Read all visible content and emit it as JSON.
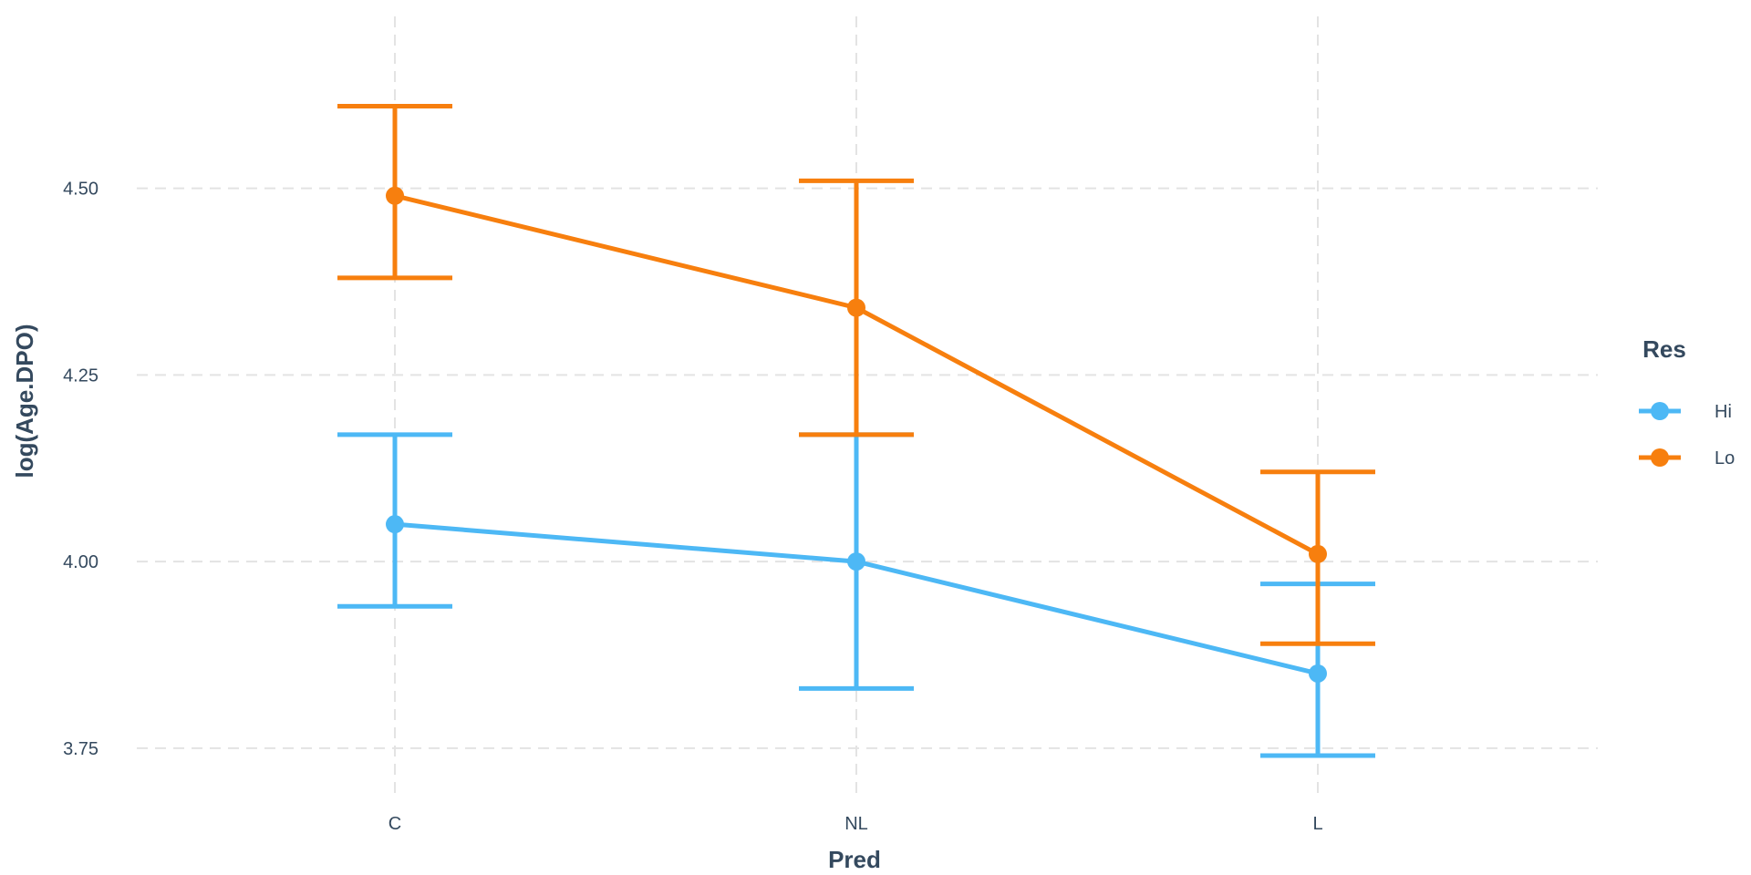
{
  "chart_data": {
    "type": "line",
    "categories": [
      "C",
      "NL",
      "L"
    ],
    "xlabel": "Pred",
    "ylabel": "log(Age.DPO)",
    "ylim": [
      3.69,
      4.74
    ],
    "yticks": [
      3.75,
      4.0,
      4.25,
      4.5
    ],
    "ytick_labels": [
      "3.75",
      "4.00",
      "4.25",
      "4.50"
    ],
    "grid": true,
    "legend": {
      "title": "Res",
      "position": "right"
    },
    "series": [
      {
        "name": "Hi",
        "color": "#4db8f5",
        "values": [
          4.05,
          4.0,
          3.85
        ],
        "lower": [
          3.94,
          3.83,
          3.74
        ],
        "upper": [
          4.17,
          4.17,
          3.97
        ]
      },
      {
        "name": "Lo",
        "color": "#f77f0e",
        "values": [
          4.49,
          4.34,
          4.01
        ],
        "lower": [
          4.38,
          4.17,
          3.89
        ],
        "upper": [
          4.61,
          4.51,
          4.12
        ]
      }
    ]
  }
}
